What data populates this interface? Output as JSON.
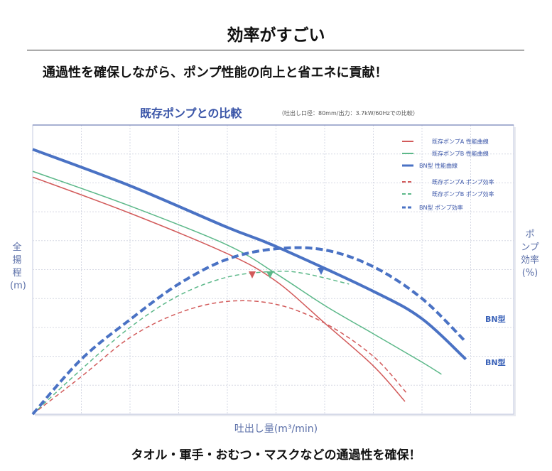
{
  "header": {
    "title": "効率がすごい",
    "subtitle": "通過性を確保しながら、ポンプ性能の向上と省エネに貢献！"
  },
  "footer": "タオル・軍手・おむつ・マスクなどの通過性を確保！",
  "colors": {
    "blue": "#4a72c4",
    "red": "#d25a5a",
    "green": "#5cb889",
    "grid": "#d6d9e4"
  },
  "chart_data": {
    "type": "line",
    "title": "既存ポンプとの比較",
    "note": "（吐出し口径：80mm/出力：3.7kW/60Hzでの比較）",
    "xlabel": "吐出し量(m³/min)",
    "ylabel": "全揚程(m)",
    "ylabel_right": "ポンプ効率(%)",
    "xlim": [
      0,
      10
    ],
    "ylim": [
      0,
      10
    ],
    "grid": true,
    "legend_position": "top-right",
    "series": [
      {
        "name": "既存ポンプA 性能曲線",
        "color": "red",
        "dash": false,
        "width": 1.5,
        "x": [
          0,
          2,
          4,
          5,
          6,
          7,
          7.65
        ],
        "y": [
          8.2,
          6.95,
          5.55,
          4.6,
          3.15,
          1.67,
          0.44
        ]
      },
      {
        "name": "既存ポンプB 性能曲線",
        "color": "green",
        "dash": false,
        "width": 1.5,
        "x": [
          0,
          2,
          4,
          5,
          6,
          7,
          8,
          8.4
        ],
        "y": [
          8.4,
          7.2,
          5.85,
          4.86,
          3.76,
          2.78,
          1.8,
          1.38
        ]
      },
      {
        "name": "BN型 性能曲線",
        "color": "blue",
        "dash": false,
        "width": 4,
        "x": [
          0,
          2,
          4,
          5,
          7,
          8,
          8.9
        ],
        "y": [
          9.16,
          7.9,
          6.46,
          5.8,
          4.25,
          3.3,
          1.9
        ]
      },
      {
        "name": "既存ポンプA ポンプ効率",
        "color": "red",
        "dash": true,
        "width": 1.5,
        "x": [
          0,
          1,
          2,
          3,
          4,
          5,
          6,
          7,
          7.7
        ],
        "y": [
          0,
          1.3,
          2.65,
          3.5,
          3.9,
          3.8,
          3.15,
          2.0,
          0.7
        ]
      },
      {
        "name": "既存ポンプB ポンプ効率",
        "color": "green",
        "dash": true,
        "width": 1.5,
        "x": [
          0,
          1,
          2,
          3,
          4,
          5,
          5.6,
          6.5
        ],
        "y": [
          0,
          1.55,
          3.0,
          4.1,
          4.74,
          4.94,
          4.86,
          4.5
        ]
      },
      {
        "name": "BN型 ポンプ効率",
        "color": "blue",
        "dash": true,
        "width": 4,
        "x": [
          0,
          1,
          2,
          3,
          4,
          5,
          6,
          7,
          8,
          8.9
        ],
        "y": [
          0,
          1.9,
          3.27,
          4.5,
          5.36,
          5.72,
          5.68,
          5.1,
          4.0,
          2.5
        ]
      }
    ],
    "annotations": [
      {
        "text": "BN型",
        "x": 9.3,
        "y": 3.2
      },
      {
        "text": "BN型",
        "x": 9.3,
        "y": 1.7
      }
    ]
  }
}
